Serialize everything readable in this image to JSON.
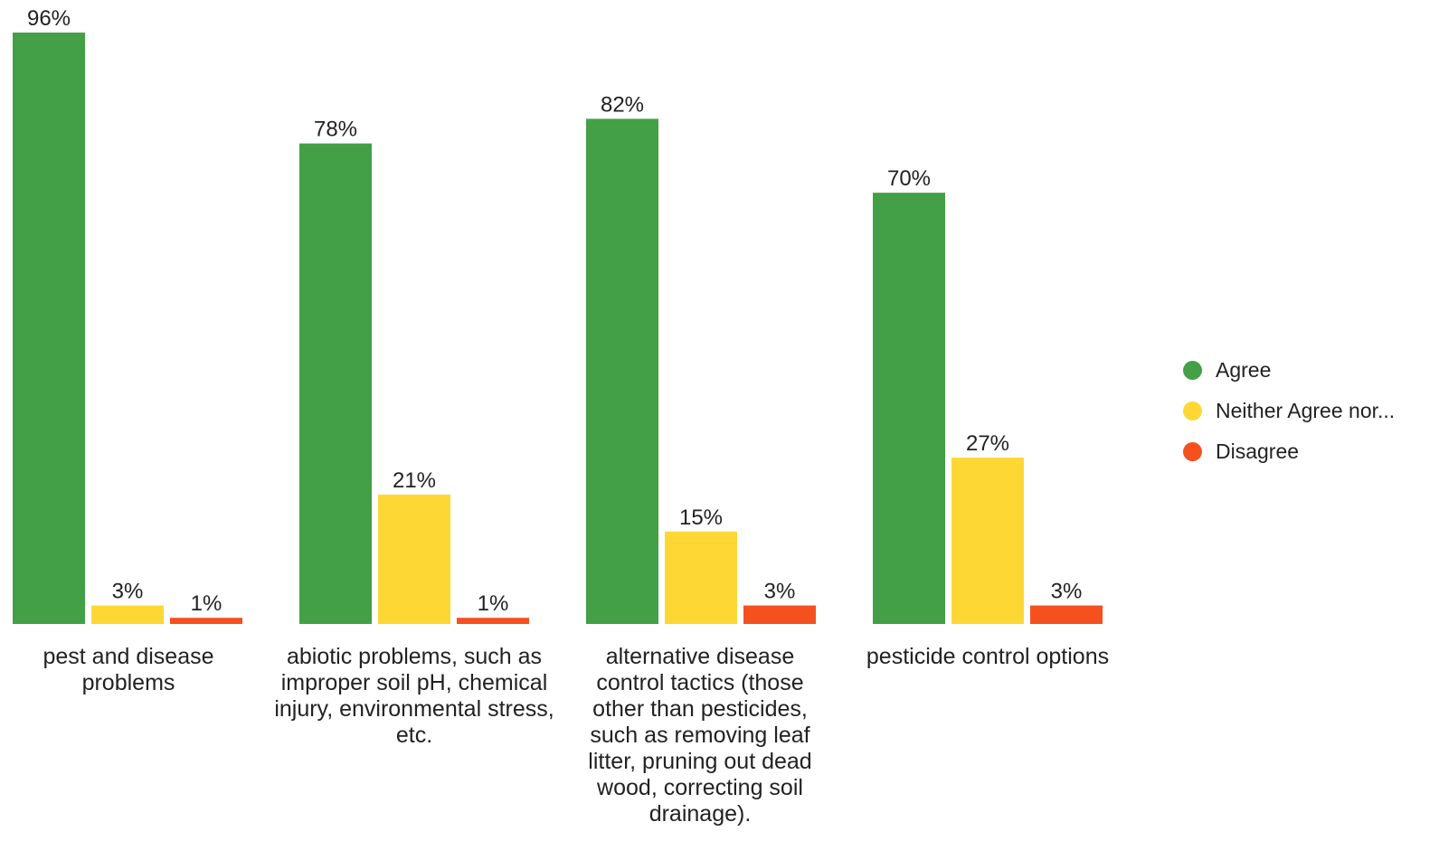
{
  "chart_data": {
    "type": "bar",
    "categories": [
      "pest and disease problems",
      "abiotic problems, such as improper soil pH, chemical injury, environmental stress, etc.",
      "alternative disease control tactics (those other than pesticides, such as removing leaf litter, pruning out dead wood, correcting soil drainage).",
      "pesticide control options"
    ],
    "series": [
      {
        "name": "Agree",
        "color": "#43a047",
        "values": [
          96,
          78,
          82,
          70
        ],
        "labels": [
          "96%",
          "78%",
          "82%",
          "70%"
        ]
      },
      {
        "name": "Neither Agree nor...",
        "color": "#fdd835",
        "values": [
          3,
          21,
          15,
          27
        ],
        "labels": [
          "3%",
          "21%",
          "15%",
          "27%"
        ]
      },
      {
        "name": "Disagree",
        "color": "#f4511e",
        "values": [
          1,
          1,
          3,
          3
        ],
        "labels": [
          "1%",
          "1%",
          "3%",
          "3%"
        ]
      }
    ],
    "unit": "%",
    "ylim": [
      0,
      96
    ],
    "grid": false,
    "legend_position": "right"
  }
}
